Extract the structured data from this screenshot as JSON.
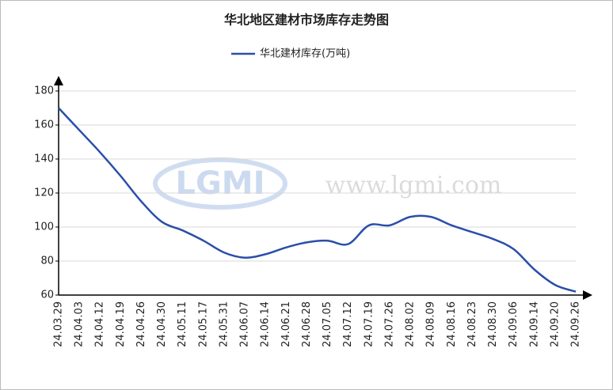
{
  "chart_data": {
    "type": "line",
    "title": "华北地区建材市场库存走势图",
    "watermark": [
      "LGMI",
      "www.lgmi.com"
    ],
    "categories": [
      "24.03.29",
      "24.04.03",
      "24.04.12",
      "24.04.19",
      "24.04.26",
      "24.04.30",
      "24.05.11",
      "24.05.17",
      "24.05.31",
      "24.06.07",
      "24.06.14",
      "24.06.21",
      "24.06.28",
      "24.07.05",
      "24.07.12",
      "24.07.19",
      "24.07.26",
      "24.08.02",
      "24.08.09",
      "24.08.16",
      "24.08.23",
      "24.08.30",
      "24.09.06",
      "24.09.14",
      "24.09.20",
      "24.09.26"
    ],
    "series": [
      {
        "name": "华北建材库存(万吨)",
        "color": "#2a4fa8",
        "values": [
          170,
          157,
          144,
          130,
          115,
          103,
          98,
          92,
          85,
          82,
          84,
          88,
          91,
          92,
          90,
          101,
          101,
          106,
          106,
          101,
          97,
          93,
          87,
          75,
          66,
          62
        ]
      }
    ],
    "ylim": [
      60,
      180
    ],
    "yticks": [
      60,
      80,
      100,
      120,
      140,
      160,
      180
    ],
    "grid": true,
    "legend": "top"
  }
}
